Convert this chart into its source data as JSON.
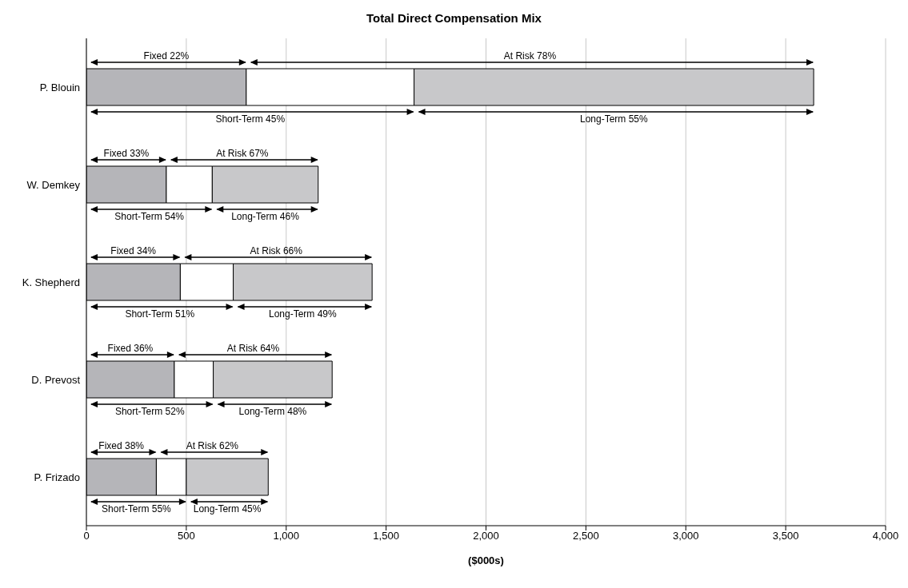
{
  "chart_data": {
    "type": "bar",
    "title": "Total Direct Compensation Mix",
    "xlabel": "($000s)",
    "orientation": "horizontal",
    "stacked": true,
    "categories": [
      "P. Blouin",
      "W. Demkey",
      "K. Shepherd",
      "D. Prevost",
      "P. Frizado"
    ],
    "series": [
      {
        "color": "#b5b5b9",
        "values": [
          800,
          400,
          470,
          440,
          350
        ]
      },
      {
        "color": "#ffffff",
        "values": [
          840,
          230,
          265,
          195,
          150
        ]
      },
      {
        "color": "#c8c8ca",
        "values": [
          2000,
          530,
          695,
          595,
          410
        ]
      }
    ],
    "xlim": [
      0,
      4000
    ],
    "xticks": [
      0,
      500,
      {
        "value": 1000,
        "label": "1,000"
      },
      {
        "value": 1500,
        "label": "1,500"
      },
      {
        "value": 2000,
        "label": "2,000"
      },
      {
        "value": 2500,
        "label": "2,500"
      },
      {
        "value": 3000,
        "label": "3,000"
      },
      {
        "value": 3500,
        "label": "3,500"
      },
      {
        "value": 4000,
        "label": "4,000"
      }
    ],
    "grid": "x",
    "annotations": [
      "Fixed 22%",
      "At Risk 78%",
      "Short-Term 45%",
      "Long-Term 55%",
      "Fixed 33%",
      "At Risk 67%",
      "Short-Term 54%",
      "Long-Term 46%",
      "Fixed 34%",
      "At Risk 66%",
      "Short-Term 51%",
      "Long-Term 49%",
      "Fixed 36%",
      "At Risk 64%",
      "Short-Term 52%",
      "Long-Term 48%",
      "Fixed 38%",
      "At Risk 62%",
      "Short-Term 55%",
      "Long-Term 45%"
    ]
  }
}
